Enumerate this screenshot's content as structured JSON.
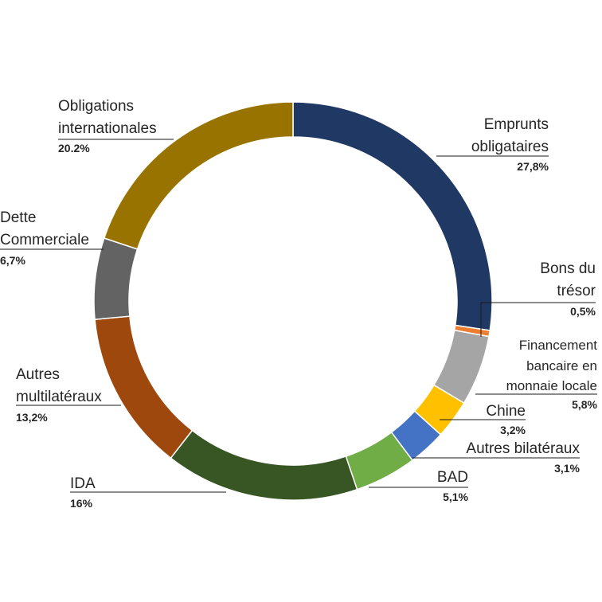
{
  "chart_data": {
    "type": "pie",
    "variant": "donut",
    "title": "",
    "legend": "none",
    "series": [
      {
        "name": "Emprunts obligataires",
        "label_lines": [
          "Emprunts",
          "obligataires"
        ],
        "value_label": "27,8%",
        "value": 27.8,
        "color": "#203864"
      },
      {
        "name": "Bons du trésor",
        "label_lines": [
          "Bons du",
          "trésor"
        ],
        "value_label": "0,5%",
        "value": 0.5,
        "color": "#ED7D31"
      },
      {
        "name": "Financement bancaire en monnaie locale",
        "label_lines": [
          "Financement",
          "bancaire en",
          "monnaie locale"
        ],
        "value_label": "5,8%",
        "value": 5.8,
        "color": "#A5A5A5"
      },
      {
        "name": "Chine",
        "label_lines": [
          "Chine"
        ],
        "value_label": "3,2%",
        "value": 3.2,
        "color": "#FFC000"
      },
      {
        "name": "Autres bilatéraux",
        "label_lines": [
          "Autres bilatéraux"
        ],
        "value_label": "3,1%",
        "value": 3.1,
        "color": "#4472C4"
      },
      {
        "name": "BAD",
        "label_lines": [
          "BAD"
        ],
        "value_label": "5,1%",
        "value": 5.1,
        "color": "#70AD47"
      },
      {
        "name": "IDA",
        "label_lines": [
          "IDA"
        ],
        "value_label": "16%",
        "value": 16.0,
        "color": "#375623"
      },
      {
        "name": "Autres multilatéraux",
        "label_lines": [
          "Autres",
          "multilatéraux"
        ],
        "value_label": "13,2%",
        "value": 13.2,
        "color": "#9E480E"
      },
      {
        "name": "Dette Commerciale",
        "label_lines": [
          "Dette",
          "Commerciale"
        ],
        "value_label": "6,7%",
        "value": 6.7,
        "color": "#636363"
      },
      {
        "name": "Obligations internationales",
        "label_lines": [
          "Obligations",
          "internationales"
        ],
        "value_label": "20.2%",
        "value": 20.2,
        "color": "#997300"
      }
    ]
  }
}
